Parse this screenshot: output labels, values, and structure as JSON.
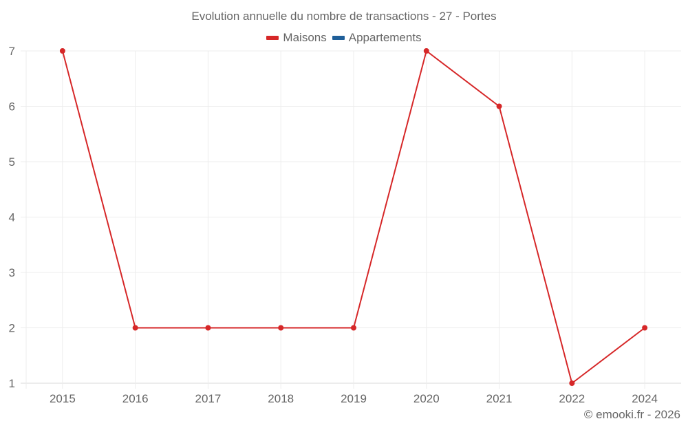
{
  "chart": {
    "title": "Evolution annuelle du nombre de transactions - 27 - Portes",
    "legend": [
      {
        "label": "Maisons",
        "color": "#d62728"
      },
      {
        "label": "Appartements",
        "color": "#1f5f99"
      }
    ],
    "credit": "© emooki.fr - 2026"
  },
  "chart_data": {
    "type": "line",
    "title": "Evolution annuelle du nombre de transactions - 27 - Portes",
    "xlabel": "",
    "ylabel": "",
    "categories": [
      "2015",
      "2016",
      "2017",
      "2018",
      "2019",
      "2020",
      "2021",
      "2022",
      "2024"
    ],
    "series": [
      {
        "name": "Maisons",
        "color": "#d62728",
        "values": [
          7,
          2,
          2,
          2,
          2,
          7,
          6,
          1,
          2
        ]
      },
      {
        "name": "Appartements",
        "color": "#1f5f99",
        "values": []
      }
    ],
    "yticks": [
      1,
      2,
      3,
      4,
      5,
      6,
      7
    ],
    "ylim": [
      1,
      7
    ],
    "grid": true,
    "legend_position": "top"
  }
}
